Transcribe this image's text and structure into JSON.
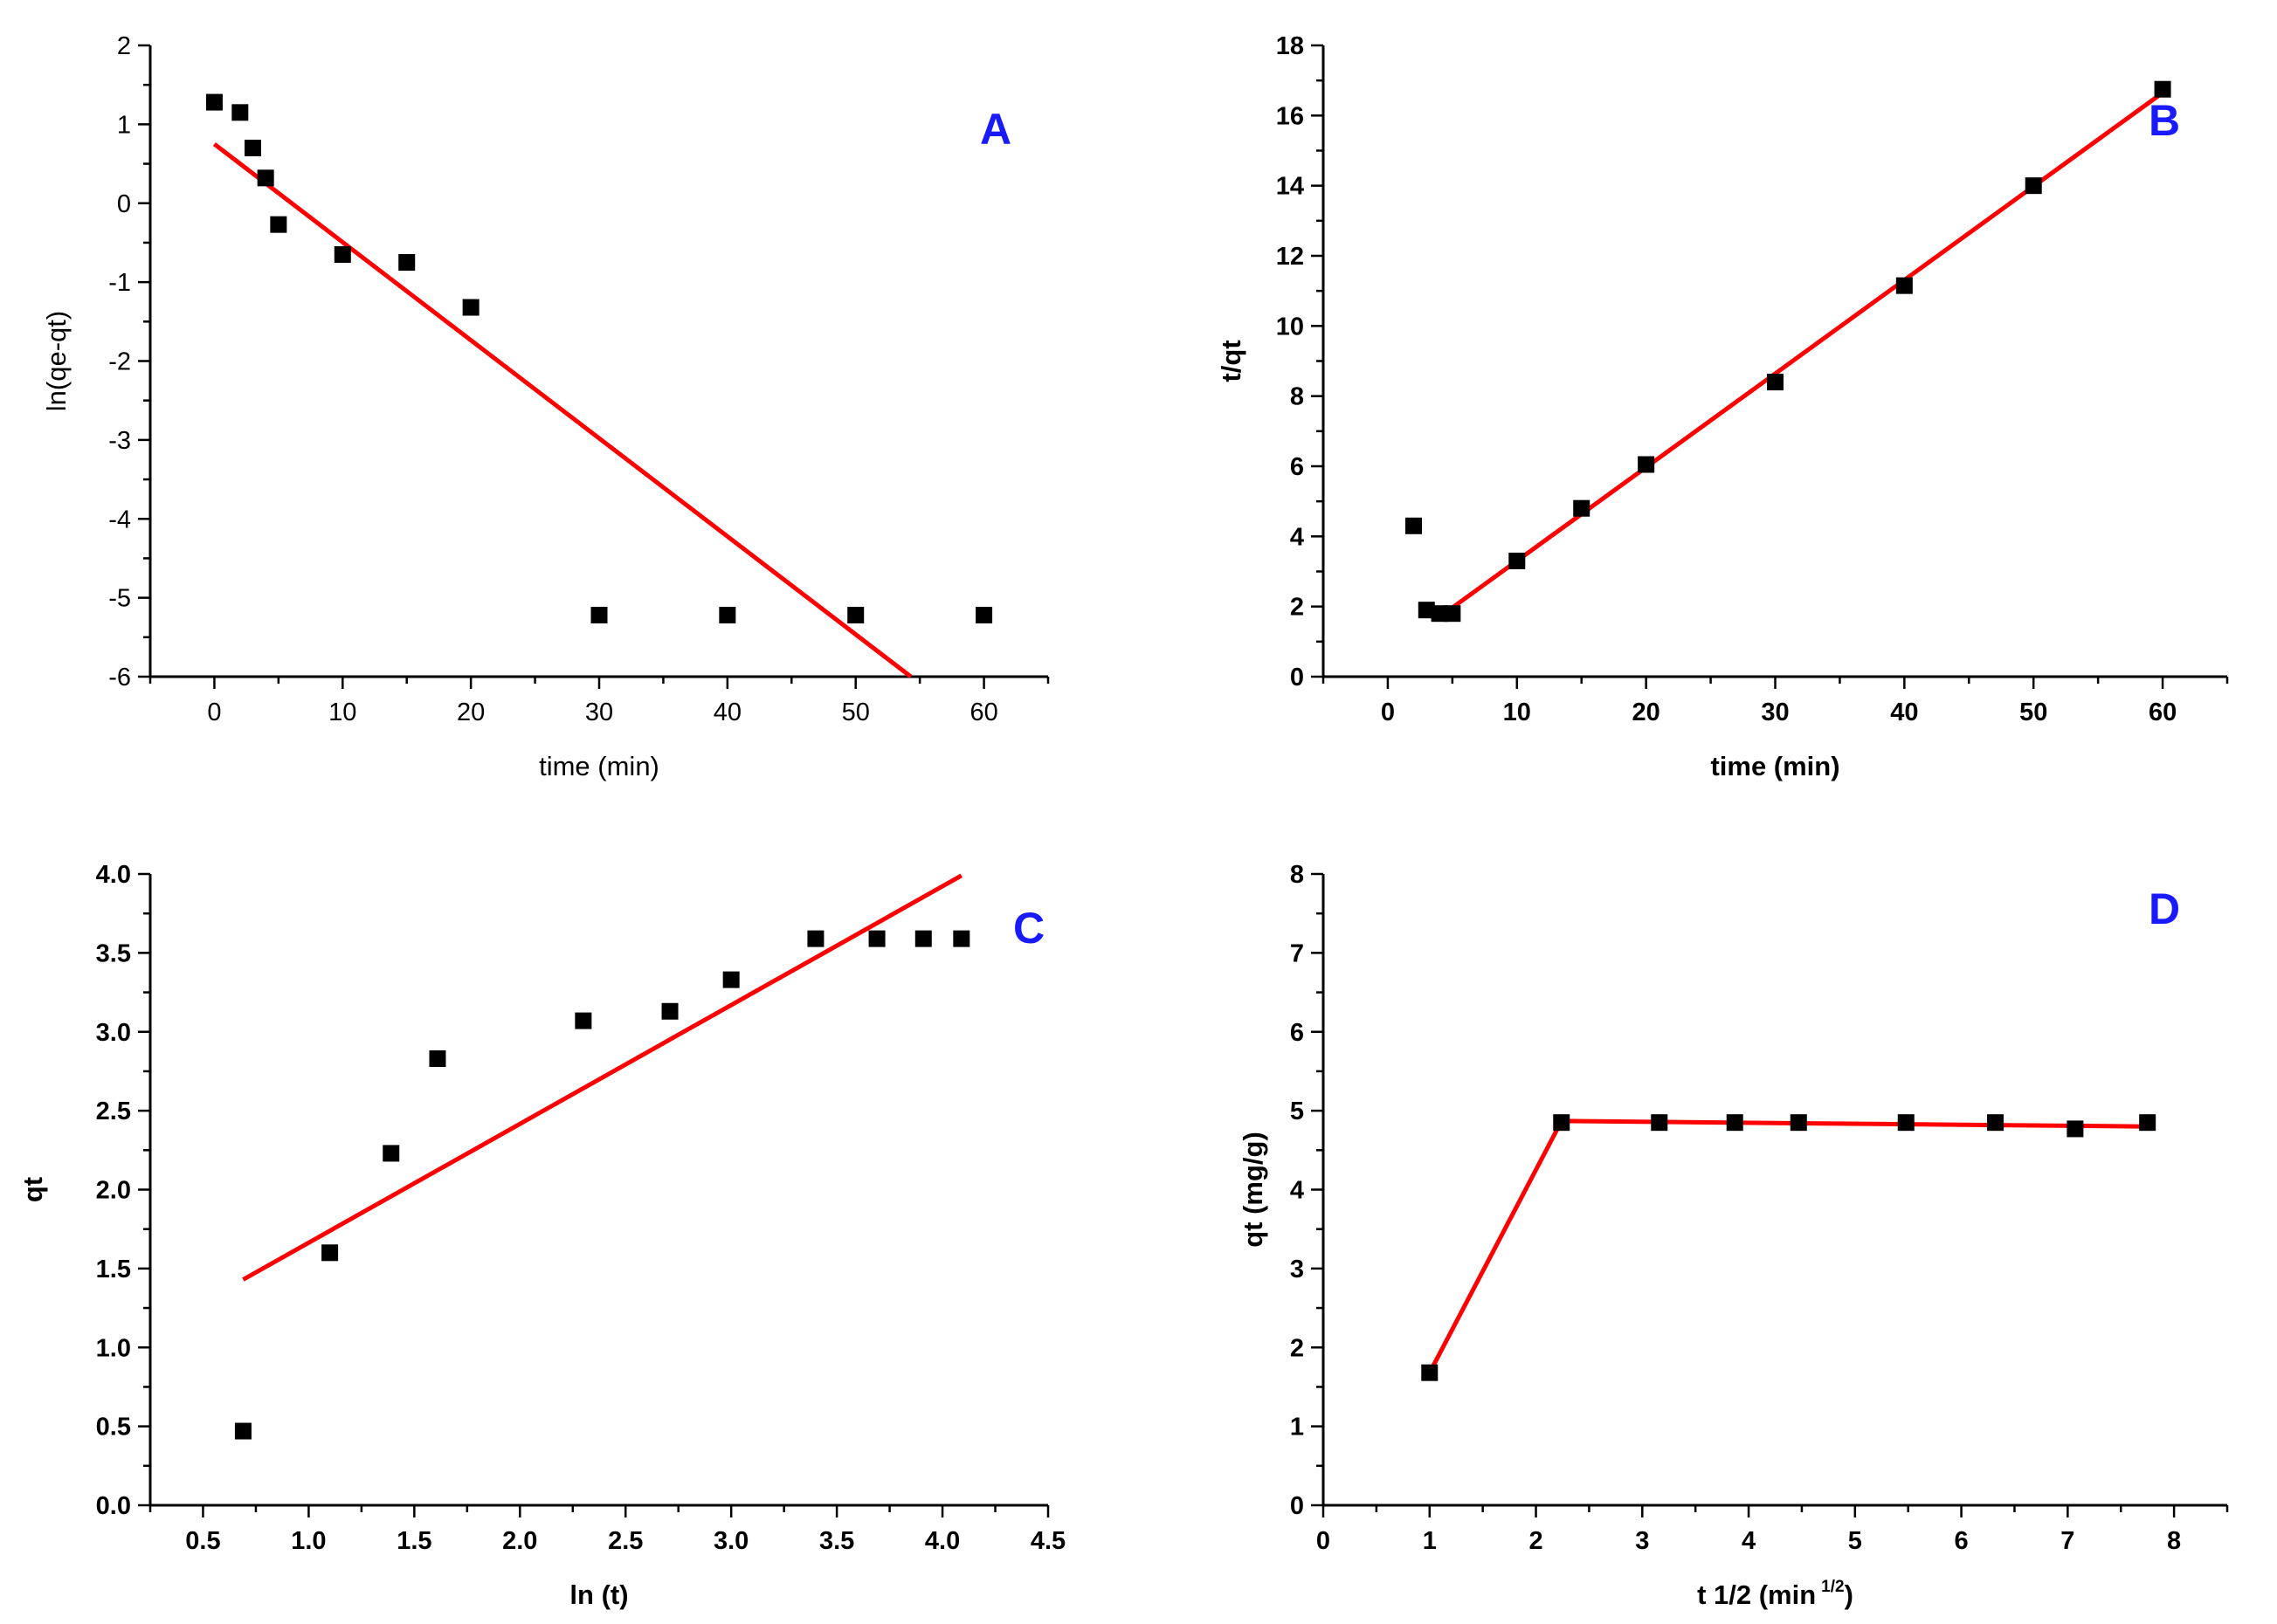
{
  "colors": {
    "fit_line": "#ff0000",
    "points": "#000000",
    "panel_label": "#1a1aff",
    "axis": "#000000"
  },
  "chart_data": [
    {
      "panel": "A",
      "type": "scatter",
      "title": "",
      "xlabel": "time (min)",
      "ylabel": "ln(qe-qt)",
      "xlim": [
        -5,
        65
      ],
      "ylim": [
        -6,
        2
      ],
      "xticks": [
        0,
        10,
        20,
        30,
        40,
        50,
        60
      ],
      "yticks": [
        -6,
        -5,
        -4,
        -3,
        -2,
        -1,
        0,
        1,
        2
      ],
      "tick_decimals": 0,
      "label_bold": false,
      "points": [
        [
          0,
          1.28
        ],
        [
          2,
          1.15
        ],
        [
          3,
          0.7
        ],
        [
          4,
          0.32
        ],
        [
          5,
          -0.27
        ],
        [
          10,
          -0.65
        ],
        [
          15,
          -0.75
        ],
        [
          20,
          -1.32
        ],
        [
          30,
          -5.22
        ],
        [
          40,
          -5.22
        ],
        [
          50,
          -5.22
        ],
        [
          60,
          -5.22
        ]
      ],
      "fit_line": [
        [
          0,
          0.75
        ],
        [
          54.3,
          -6
        ]
      ]
    },
    {
      "panel": "B",
      "type": "scatter",
      "title": "",
      "xlabel": "time (min)",
      "ylabel": "t/qt",
      "xlim": [
        -5,
        65
      ],
      "ylim": [
        0,
        18
      ],
      "xticks": [
        0,
        10,
        20,
        30,
        40,
        50,
        60
      ],
      "yticks": [
        0,
        2,
        4,
        6,
        8,
        10,
        12,
        14,
        16,
        18
      ],
      "tick_decimals": 0,
      "label_bold": true,
      "points": [
        [
          2,
          4.3
        ],
        [
          3,
          1.9
        ],
        [
          4,
          1.8
        ],
        [
          5,
          1.8
        ],
        [
          10,
          3.3
        ],
        [
          15,
          4.8
        ],
        [
          20,
          6.05
        ],
        [
          30,
          8.4
        ],
        [
          40,
          11.15
        ],
        [
          50,
          14.0
        ],
        [
          60,
          16.75
        ]
      ],
      "fit_line": [
        [
          4,
          1.7
        ],
        [
          60,
          16.65
        ]
      ]
    },
    {
      "panel": "C",
      "type": "scatter",
      "title": "",
      "xlabel": "ln (t)",
      "ylabel": "qt",
      "xlim": [
        0.25,
        4.5
      ],
      "ylim": [
        0,
        4
      ],
      "xticks": [
        0.5,
        1.0,
        1.5,
        2.0,
        2.5,
        3.0,
        3.5,
        4.0,
        4.5
      ],
      "yticks": [
        0,
        0.5,
        1.0,
        1.5,
        2.0,
        2.5,
        3.0,
        3.5,
        4.0
      ],
      "tick_decimals": 1,
      "label_bold": true,
      "points": [
        [
          0.69,
          0.47
        ],
        [
          1.1,
          1.6
        ],
        [
          1.39,
          2.23
        ],
        [
          1.61,
          2.83
        ],
        [
          2.3,
          3.07
        ],
        [
          2.71,
          3.13
        ],
        [
          3.0,
          3.33
        ],
        [
          3.4,
          3.59
        ],
        [
          3.69,
          3.59
        ],
        [
          3.91,
          3.59
        ],
        [
          4.09,
          3.59
        ]
      ],
      "fit_line": [
        [
          0.69,
          1.43
        ],
        [
          4.09,
          3.99
        ]
      ]
    },
    {
      "panel": "D",
      "type": "scatter",
      "title": "",
      "xlabel": "t 1/2 (min",
      "xlabel_sup": "1/2",
      "xlabel_close": ")",
      "ylabel": "qt (mg/g)",
      "xlim": [
        0,
        8.5
      ],
      "ylim": [
        0,
        8
      ],
      "xticks": [
        0,
        1,
        2,
        3,
        4,
        5,
        6,
        7,
        8
      ],
      "yticks": [
        0,
        1,
        2,
        3,
        4,
        5,
        6,
        7,
        8
      ],
      "tick_decimals": 0,
      "label_bold": true,
      "points": [
        [
          1.0,
          1.68
        ],
        [
          2.24,
          4.85
        ],
        [
          3.16,
          4.85
        ],
        [
          3.87,
          4.85
        ],
        [
          4.47,
          4.85
        ],
        [
          5.48,
          4.85
        ],
        [
          6.32,
          4.85
        ],
        [
          7.07,
          4.77
        ],
        [
          7.75,
          4.85
        ]
      ],
      "fit_line": [
        [
          1.0,
          1.68
        ],
        [
          2.24,
          4.87
        ],
        [
          7.75,
          4.8
        ]
      ]
    }
  ]
}
